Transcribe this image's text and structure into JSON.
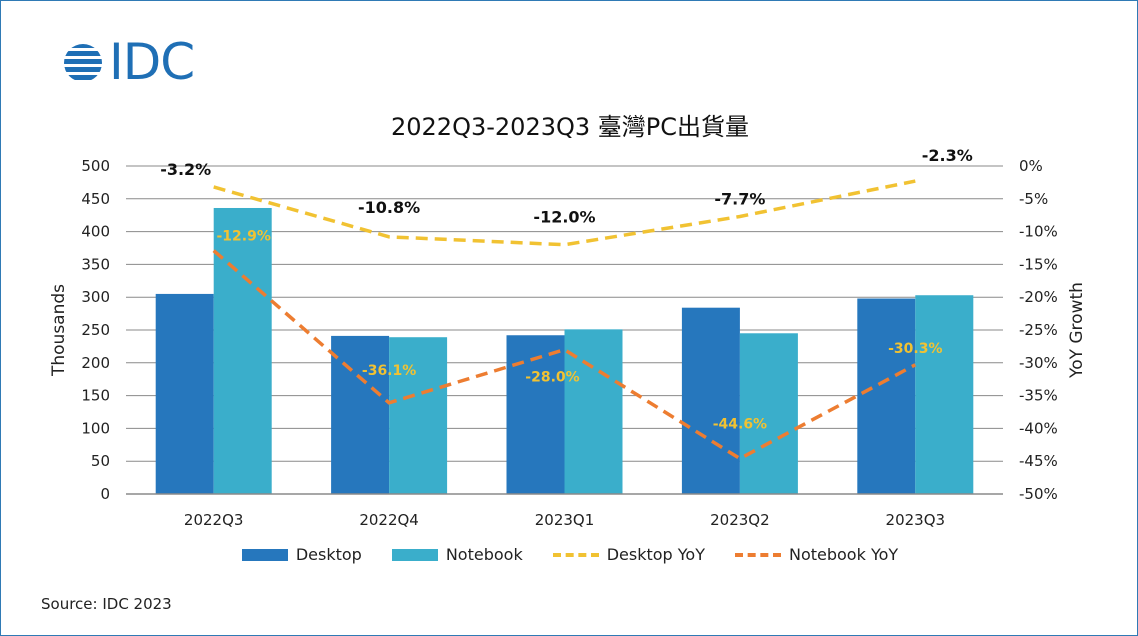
{
  "logo": {
    "text": "IDC"
  },
  "source": "Source: IDC 2023",
  "colors": {
    "desktop": "#2677bd",
    "notebook": "#3aaecb",
    "desktop_yoy": "#f1c232",
    "notebook_yoy": "#ed7d31",
    "grid": "#8a8a8a"
  },
  "chart_data": {
    "type": "bar",
    "title": "2022Q3-2023Q3 臺灣PC出貨量",
    "categories": [
      "2022Q3",
      "2022Q4",
      "2023Q1",
      "2023Q2",
      "2023Q3"
    ],
    "ylabel": "Thousands",
    "ylim": [
      0,
      500
    ],
    "y_ticks": [
      0,
      50,
      100,
      150,
      200,
      250,
      300,
      350,
      400,
      450,
      500
    ],
    "y2label": "YoY Growth",
    "y2lim": [
      -50,
      0
    ],
    "y2_ticks": [
      0,
      -5,
      -10,
      -15,
      -20,
      -25,
      -30,
      -35,
      -40,
      -45,
      -50
    ],
    "y2_tick_suffix": "%",
    "grid": true,
    "legend_position": "bottom",
    "series": [
      {
        "name": "Desktop",
        "kind": "bar",
        "values": [
          305,
          241,
          242,
          284,
          298
        ]
      },
      {
        "name": "Notebook",
        "kind": "bar",
        "values": [
          436,
          239,
          251,
          245,
          303
        ]
      },
      {
        "name": "Desktop YoY",
        "kind": "line",
        "axis": "right",
        "values": [
          -3.2,
          -10.8,
          -12.0,
          -7.7,
          -2.3
        ],
        "labels": [
          "-3.2%",
          "-10.8%",
          "-12.0%",
          "-7.7%",
          "-2.3%"
        ]
      },
      {
        "name": "Notebook YoY",
        "kind": "line",
        "axis": "right",
        "values": [
          -12.9,
          -36.1,
          -28.0,
          -44.6,
          -30.3
        ],
        "labels": [
          "-12.9%",
          "-36.1%",
          "-28.0%",
          "-44.6%",
          "-30.3%"
        ]
      }
    ]
  }
}
